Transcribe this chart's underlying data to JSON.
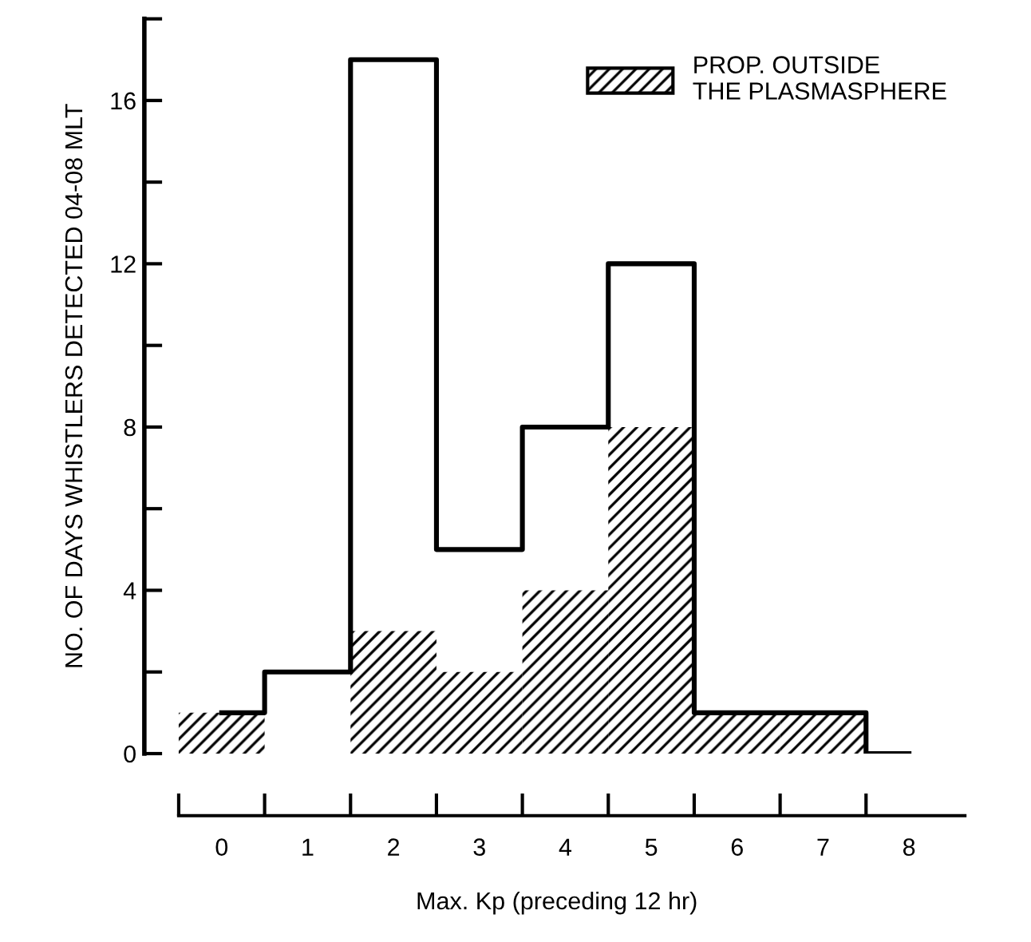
{
  "chart_data": {
    "type": "bar",
    "xlabel": "Max. Kp (preceding 12 hr)",
    "ylabel": "NO. OF DAYS WHISTLERS DETECTED 04-08 MLT",
    "categories": [
      "0",
      "1",
      "2",
      "3",
      "4",
      "5",
      "6",
      "7",
      "8"
    ],
    "series": [
      {
        "name": "PROP. OUTSIDE\nTHE PLASMASPHERE",
        "color": "#000000",
        "values": [
          1,
          0,
          3,
          2,
          4,
          8,
          1,
          1,
          0
        ]
      },
      {
        "type": "step",
        "color": "#000000",
        "values": [
          1,
          2,
          17,
          5,
          8,
          12,
          1,
          1,
          0
        ]
      }
    ],
    "ylim": [
      0,
      18
    ],
    "yticks": [
      0,
      {
        "value": 2,
        "label": null
      },
      4,
      {
        "value": 6,
        "label": null
      },
      8,
      {
        "value": 10,
        "label": null
      },
      12,
      {
        "value": 14,
        "label": null
      },
      16,
      {
        "value": 18,
        "label": null
      }
    ],
    "grid": false,
    "legend": "top right"
  }
}
